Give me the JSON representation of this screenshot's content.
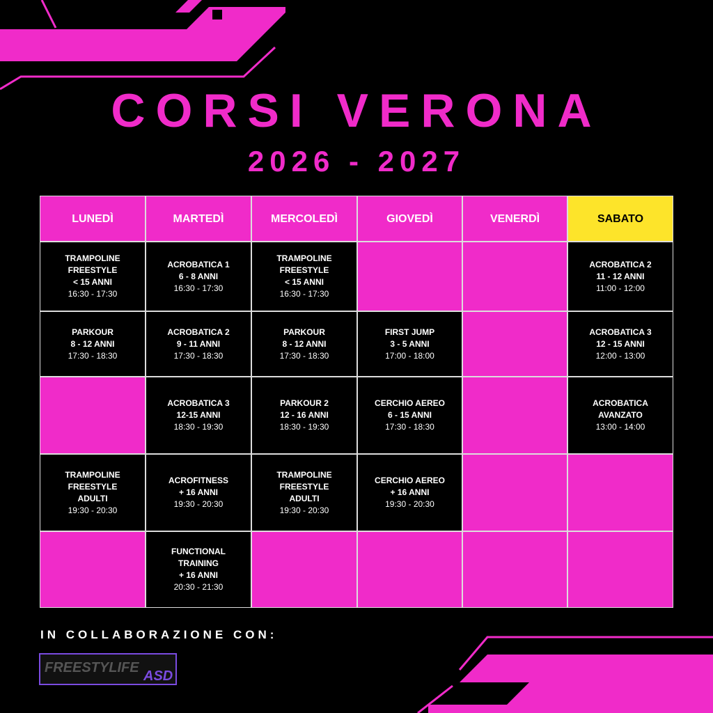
{
  "title": "CORSI VERONA",
  "subtitle": "2026 - 2027",
  "table": {
    "headers": [
      "LUNEDÌ",
      "MARTEDÌ",
      "MERCOLEDÌ",
      "GIOVEDÌ",
      "VENERDÌ",
      "SABATO"
    ],
    "rows": [
      [
        {
          "lines": [
            "TRAMPOLINE",
            "FREESTYLE",
            "< 15 ANNI"
          ],
          "time": "16:30 - 17:30"
        },
        {
          "lines": [
            "ACROBATICA 1",
            "6 - 8 ANNI"
          ],
          "time": "16:30 - 17:30"
        },
        {
          "lines": [
            "TRAMPOLINE",
            "FREESTYLE",
            "< 15 ANNI"
          ],
          "time": "16:30 - 17:30"
        },
        null,
        null,
        {
          "lines": [
            "ACROBATICA 2",
            "11 - 12 ANNI"
          ],
          "time": "11:00 - 12:00"
        }
      ],
      [
        {
          "lines": [
            "PARKOUR",
            "8 - 12 ANNI"
          ],
          "time": "17:30 - 18:30"
        },
        {
          "lines": [
            "ACROBATICA 2",
            "9 - 11 ANNI"
          ],
          "time": "17:30 - 18:30"
        },
        {
          "lines": [
            "PARKOUR",
            "8 - 12 ANNI"
          ],
          "time": "17:30 - 18:30"
        },
        {
          "lines": [
            "FIRST JUMP",
            "3 - 5 ANNI"
          ],
          "time": "17:00 - 18:00"
        },
        null,
        {
          "lines": [
            "ACROBATICA 3",
            "12 - 15 ANNI"
          ],
          "time": "12:00 - 13:00"
        }
      ],
      [
        null,
        {
          "lines": [
            "ACROBATICA 3",
            "12-15 ANNI"
          ],
          "time": "18:30 - 19:30"
        },
        {
          "lines": [
            "PARKOUR 2",
            "12 - 16 ANNI"
          ],
          "time": "18:30 - 19:30"
        },
        {
          "lines": [
            "CERCHIO AEREO",
            "6 - 15 ANNI"
          ],
          "time": "17:30 - 18:30"
        },
        null,
        {
          "lines": [
            "ACROBATICA",
            "AVANZATO"
          ],
          "time": "13:00 - 14:00"
        }
      ],
      [
        {
          "lines": [
            "TRAMPOLINE",
            "FREESTYLE",
            "ADULTI"
          ],
          "time": "19:30 - 20:30"
        },
        {
          "lines": [
            "ACROFITNESS",
            "+ 16 ANNI"
          ],
          "time": "19:30 - 20:30"
        },
        {
          "lines": [
            "TRAMPOLINE",
            "FREESTYLE",
            "ADULTI"
          ],
          "time": "19:30 - 20:30"
        },
        {
          "lines": [
            "CERCHIO AEREO",
            "+ 16 ANNI"
          ],
          "time": "19:30 - 20:30"
        },
        null,
        null
      ],
      [
        null,
        {
          "lines": [
            "FUNCTIONAL",
            "TRAINING",
            "+ 16 ANNI"
          ],
          "time": "20:30 - 21:30"
        },
        null,
        null,
        null,
        null
      ]
    ]
  },
  "footer": {
    "text": "IN COLLABORAZIONE CON:",
    "logo": [
      "FREESTYLIFE",
      "ASD"
    ]
  }
}
